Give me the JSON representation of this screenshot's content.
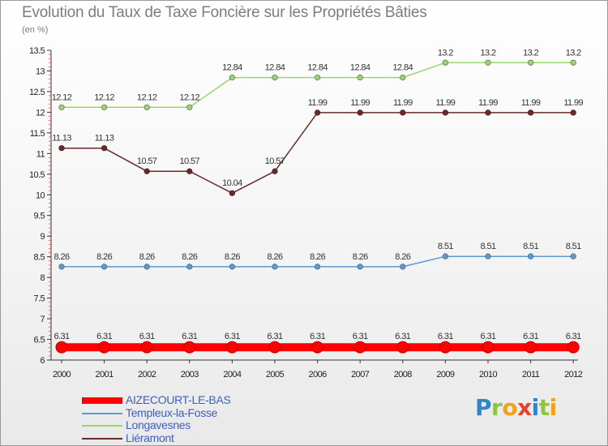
{
  "header": {
    "title": "Evolution du Taux de Taxe Foncière sur les Propriétés Bâties",
    "unit": "(en %)"
  },
  "brand": {
    "letters": [
      {
        "ch": "P",
        "color": "#2e86c9"
      },
      {
        "ch": "r",
        "color": "#8cc63e"
      },
      {
        "ch": "o",
        "color": "#f0a21b"
      },
      {
        "ch": "x",
        "color": "#e8422e"
      },
      {
        "ch": "i",
        "color": "#2e86c9"
      },
      {
        "ch": "t",
        "color": "#8cc63e"
      },
      {
        "ch": "i",
        "color": "#f0a21b"
      }
    ]
  },
  "chart_data": {
    "type": "line",
    "title": "Evolution du Taux de Taxe Foncière sur les Propriétés Bâties",
    "ylabel": "(en %)",
    "xlabel": "",
    "categories": [
      "2000",
      "2001",
      "2002",
      "2003",
      "2004",
      "2005",
      "2006",
      "2007",
      "2008",
      "2009",
      "2010",
      "2011",
      "2012"
    ],
    "ylim": [
      6,
      13.5
    ],
    "yticks": [
      "6",
      "6.5",
      "7",
      "7.5",
      "8",
      "8.5",
      "9",
      "9.5",
      "10",
      "10.5",
      "11",
      "11.5",
      "12",
      "12.5",
      "13",
      "13.5"
    ],
    "grid": false,
    "legend_position": "bottom-left",
    "series": [
      {
        "name": "AIZECOURT-LE-BAS",
        "color": "#ff0000",
        "legend_text_color": "#3b5fc4",
        "values": [
          6.31,
          6.31,
          6.31,
          6.31,
          6.31,
          6.31,
          6.31,
          6.31,
          6.31,
          6.31,
          6.31,
          6.31,
          6.31
        ],
        "labels": [
          "6.31",
          "6.31",
          "6.31",
          "6.31",
          "6.31",
          "6.31",
          "6.31",
          "6.31",
          "6.31",
          "6.31",
          "6.31",
          "6.31",
          "6.31"
        ]
      },
      {
        "name": "Templeux-la-Fosse",
        "color": "#5b9bd5",
        "legend_text_color": "#3b5fc4",
        "values": [
          8.26,
          8.26,
          8.26,
          8.26,
          8.26,
          8.26,
          8.26,
          8.26,
          8.26,
          8.51,
          8.51,
          8.51,
          8.51
        ],
        "labels": [
          "8.26",
          "8.26",
          "8.26",
          "8.26",
          "8.26",
          "8.26",
          "8.26",
          "8.26",
          "8.26",
          "8.51",
          "8.51",
          "8.51",
          "8.51"
        ]
      },
      {
        "name": "Longavesnes",
        "color": "#9bd56b",
        "legend_text_color": "#3b5fc4",
        "values": [
          12.12,
          12.12,
          12.12,
          12.12,
          12.84,
          12.84,
          12.84,
          12.84,
          12.84,
          13.2,
          13.2,
          13.2,
          13.2
        ],
        "labels": [
          "12.12",
          "12.12",
          "12.12",
          "12.12",
          "12.84",
          "12.84",
          "12.84",
          "12.84",
          "12.84",
          "13.2",
          "13.2",
          "13.2",
          "13.2"
        ]
      },
      {
        "name": "Liéramont",
        "color": "#6b2a2a",
        "legend_text_color": "#3b5fc4",
        "values": [
          11.13,
          11.13,
          10.57,
          10.57,
          10.04,
          10.57,
          11.99,
          11.99,
          11.99,
          11.99,
          11.99,
          11.99,
          11.99
        ],
        "labels": [
          "11.13",
          "11.13",
          "10.57",
          "10.57",
          "10.04",
          "10.57",
          "11.99",
          "11.99",
          "11.99",
          "11.99",
          "11.99",
          "11.99",
          "11.99"
        ]
      }
    ]
  }
}
